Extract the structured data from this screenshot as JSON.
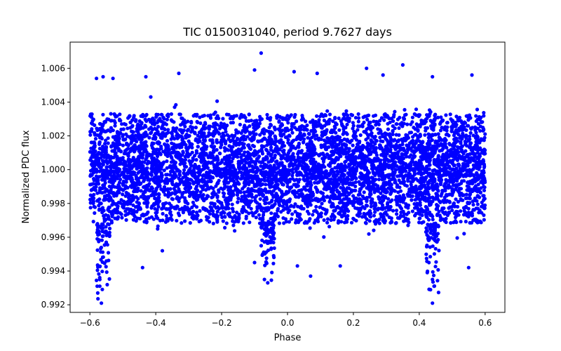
{
  "chart_data": {
    "type": "scatter",
    "title": "TIC 0150031040, period 9.7627 days",
    "xlabel": "Phase",
    "ylabel": "Normalized PDC flux",
    "xlim": [
      -0.66,
      0.66
    ],
    "ylim": [
      0.99155,
      1.00755
    ],
    "xticks": [
      -0.6,
      -0.4,
      -0.2,
      0.0,
      0.2,
      0.4,
      0.6
    ],
    "xtick_labels": [
      "−0.6",
      "−0.4",
      "−0.2",
      "0.0",
      "0.2",
      "0.4",
      "0.6"
    ],
    "yticks": [
      0.992,
      0.994,
      0.996,
      0.998,
      1.0,
      1.002,
      1.004,
      1.006
    ],
    "ytick_labels": [
      "0.992",
      "0.994",
      "0.996",
      "0.998",
      "1.000",
      "1.002",
      "1.004",
      "1.006"
    ],
    "grid": false,
    "marker_color": "#0000ff",
    "series": [
      {
        "name": "PDC flux",
        "phase_range": [
          -0.6,
          0.6
        ],
        "core_flux_range": [
          0.9968,
          1.0033
        ],
        "flux_center": 1.0,
        "transit_phases": [
          -0.56,
          -0.06,
          0.44
        ],
        "transit_min_flux": [
          0.992,
          0.9932,
          0.992
        ],
        "outliers": [
          {
            "x": -0.58,
            "y": 1.0054
          },
          {
            "x": -0.56,
            "y": 1.0055
          },
          {
            "x": -0.53,
            "y": 1.0054
          },
          {
            "x": -0.43,
            "y": 1.0055
          },
          {
            "x": -0.33,
            "y": 1.0057
          },
          {
            "x": -0.1,
            "y": 1.0059
          },
          {
            "x": -0.08,
            "y": 1.0069
          },
          {
            "x": 0.02,
            "y": 1.0058
          },
          {
            "x": 0.09,
            "y": 1.0057
          },
          {
            "x": 0.24,
            "y": 1.006
          },
          {
            "x": 0.29,
            "y": 1.0056
          },
          {
            "x": 0.35,
            "y": 1.0062
          },
          {
            "x": 0.44,
            "y": 1.0055
          },
          {
            "x": 0.56,
            "y": 1.0056
          },
          {
            "x": -0.57,
            "y": 0.9935
          },
          {
            "x": -0.57,
            "y": 0.9931
          },
          {
            "x": -0.565,
            "y": 0.9921
          },
          {
            "x": -0.44,
            "y": 0.9942
          },
          {
            "x": -0.38,
            "y": 0.9952
          },
          {
            "x": -0.1,
            "y": 0.9945
          },
          {
            "x": -0.07,
            "y": 0.9935
          },
          {
            "x": -0.06,
            "y": 0.9933
          },
          {
            "x": 0.03,
            "y": 0.9943
          },
          {
            "x": 0.07,
            "y": 0.9937
          },
          {
            "x": 0.16,
            "y": 0.9943
          },
          {
            "x": 0.44,
            "y": 0.9935
          },
          {
            "x": 0.445,
            "y": 0.9931
          },
          {
            "x": 0.44,
            "y": 0.9921
          },
          {
            "x": 0.55,
            "y": 0.9942
          }
        ]
      }
    ]
  }
}
